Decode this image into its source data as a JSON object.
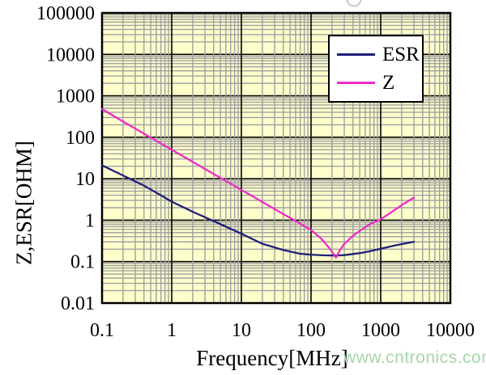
{
  "watermark": {
    "text": "www.cntronics.com",
    "color": "#a6d7a6"
  },
  "chart_data": {
    "type": "line",
    "title": "",
    "xlabel": "Frequency[MHz]",
    "ylabel": "Z,ESR[OHM]",
    "x_scale": "log",
    "y_scale": "log",
    "xlim": [
      0.1,
      10000
    ],
    "ylim": [
      0.01,
      100000
    ],
    "x_ticks": [
      "0.1",
      "1",
      "10",
      "100",
      "1000",
      "10000"
    ],
    "y_ticks": [
      "100000",
      "10000",
      "1000",
      "100",
      "10",
      "1",
      "0.1",
      "0.01"
    ],
    "grid": true,
    "legend_position": "top-right",
    "colors": {
      "plot_bg": "#ffffcc",
      "grid_minor": "#a0a0a0",
      "grid_major": "#000000",
      "border": "#000000"
    },
    "series": [
      {
        "name": "ESR",
        "color": "#1f1f7a",
        "points": [
          [
            0.1,
            21
          ],
          [
            0.2,
            12
          ],
          [
            0.4,
            6.8
          ],
          [
            0.7,
            4.0
          ],
          [
            1,
            2.8
          ],
          [
            2,
            1.6
          ],
          [
            4,
            0.95
          ],
          [
            7,
            0.62
          ],
          [
            10,
            0.47
          ],
          [
            20,
            0.27
          ],
          [
            40,
            0.19
          ],
          [
            70,
            0.155
          ],
          [
            100,
            0.147
          ],
          [
            150,
            0.142
          ],
          [
            220,
            0.14
          ],
          [
            300,
            0.143
          ],
          [
            500,
            0.16
          ],
          [
            700,
            0.178
          ],
          [
            1000,
            0.205
          ],
          [
            1500,
            0.24
          ],
          [
            2000,
            0.265
          ],
          [
            3000,
            0.3
          ]
        ]
      },
      {
        "name": "Z",
        "color": "#ee2cc8",
        "points": [
          [
            0.1,
            480
          ],
          [
            0.2,
            240
          ],
          [
            0.4,
            122
          ],
          [
            0.7,
            71
          ],
          [
            1,
            50
          ],
          [
            2,
            25.5
          ],
          [
            4,
            13
          ],
          [
            7,
            7.6
          ],
          [
            10,
            5.4
          ],
          [
            20,
            2.75
          ],
          [
            40,
            1.4
          ],
          [
            70,
            0.83
          ],
          [
            100,
            0.58
          ],
          [
            140,
            0.36
          ],
          [
            180,
            0.22
          ],
          [
            210,
            0.155
          ],
          [
            228,
            0.125
          ],
          [
            260,
            0.19
          ],
          [
            300,
            0.27
          ],
          [
            400,
            0.42
          ],
          [
            500,
            0.55
          ],
          [
            700,
            0.8
          ],
          [
            1000,
            1.05
          ],
          [
            1500,
            1.65
          ],
          [
            2000,
            2.3
          ],
          [
            3000,
            3.5
          ]
        ]
      }
    ]
  }
}
